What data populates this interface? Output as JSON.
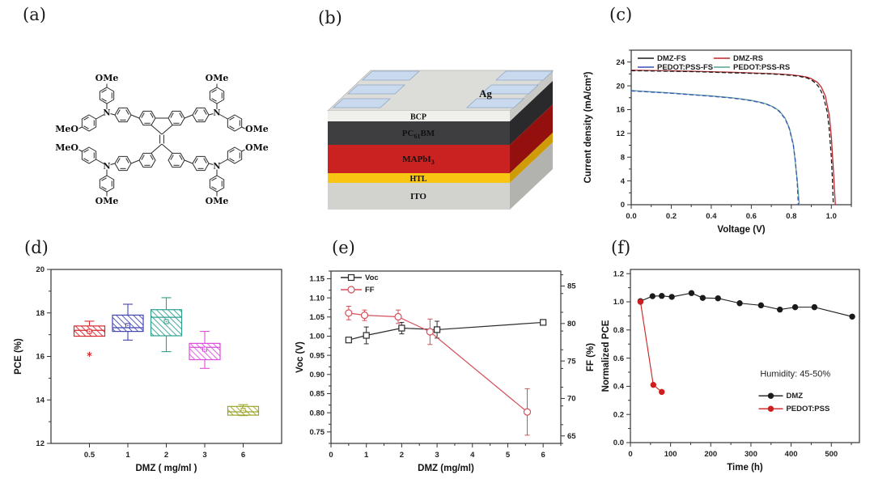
{
  "panels": {
    "a": {
      "tag": "(a)",
      "ome": "OMe",
      "meo": "MeO",
      "n": "N"
    },
    "b": {
      "tag": "(b)",
      "electrode": "Ag",
      "layers": [
        {
          "name": "BCP"
        },
        {
          "pre": "PC",
          "sub": "61",
          "post": "BM"
        },
        {
          "pre": "MAPbI",
          "sub": "3",
          "post": ""
        },
        {
          "name": "HTL"
        },
        {
          "name": "ITO"
        }
      ]
    },
    "c": {
      "tag": "(c)"
    },
    "d": {
      "tag": "(d)"
    },
    "e": {
      "tag": "(e)"
    },
    "f": {
      "tag": "(f)"
    }
  },
  "chart_data": [
    {
      "id": "jv-curves",
      "type": "line",
      "xlabel": "Voltage (V)",
      "ylabel": "Current density (mA/cm²)",
      "xlim": [
        0,
        1.1
      ],
      "ylim": [
        0,
        26
      ],
      "xticks": [
        0,
        0.2,
        0.4,
        0.6,
        0.8,
        1.0
      ],
      "xtick_labels": [
        "0.0",
        "0.2",
        "0.4",
        "0.6",
        "0.8",
        "1.0"
      ],
      "xminor": 0.1,
      "yticks": [
        0,
        4,
        8,
        12,
        16,
        20,
        24
      ],
      "ytick_labels": [
        "0",
        "4",
        "8",
        "12",
        "16",
        "20",
        "24"
      ],
      "yminor": 2,
      "series": [
        {
          "name": "DMZ-FS",
          "color": "#1a1a1a",
          "dash": "5,3",
          "points": [
            [
              0,
              22.55
            ],
            [
              0.1,
              22.5
            ],
            [
              0.2,
              22.45
            ],
            [
              0.3,
              22.4
            ],
            [
              0.4,
              22.3
            ],
            [
              0.5,
              22.2
            ],
            [
              0.6,
              22.1
            ],
            [
              0.7,
              22.0
            ],
            [
              0.75,
              21.9
            ],
            [
              0.8,
              21.75
            ],
            [
              0.84,
              21.6
            ],
            [
              0.88,
              21.3
            ],
            [
              0.9,
              21.0
            ],
            [
              0.92,
              20.5
            ],
            [
              0.94,
              19.7
            ],
            [
              0.96,
              18.3
            ],
            [
              0.98,
              15.5
            ],
            [
              0.99,
              12.5
            ],
            [
              1.0,
              8.0
            ],
            [
              1.005,
              4.5
            ],
            [
              1.01,
              0
            ]
          ]
        },
        {
          "name": "DMZ-RS",
          "color": "#c0272d",
          "points": [
            [
              0,
              22.62
            ],
            [
              0.1,
              22.57
            ],
            [
              0.2,
              22.52
            ],
            [
              0.3,
              22.45
            ],
            [
              0.4,
              22.37
            ],
            [
              0.5,
              22.28
            ],
            [
              0.6,
              22.17
            ],
            [
              0.7,
              22.05
            ],
            [
              0.75,
              21.97
            ],
            [
              0.8,
              21.85
            ],
            [
              0.84,
              21.7
            ],
            [
              0.88,
              21.45
            ],
            [
              0.9,
              21.2
            ],
            [
              0.93,
              20.6
            ],
            [
              0.95,
              19.8
            ],
            [
              0.97,
              18.3
            ],
            [
              0.99,
              15.0
            ],
            [
              1.0,
              11.5
            ],
            [
              1.01,
              6.0
            ],
            [
              1.02,
              0
            ]
          ]
        },
        {
          "name": "PEDOT:PSS-FS",
          "color": "#3c50b4",
          "dash": "5,3",
          "points": [
            [
              0,
              19.15
            ],
            [
              0.1,
              18.95
            ],
            [
              0.2,
              18.75
            ],
            [
              0.3,
              18.5
            ],
            [
              0.4,
              18.25
            ],
            [
              0.5,
              17.95
            ],
            [
              0.55,
              17.75
            ],
            [
              0.6,
              17.5
            ],
            [
              0.65,
              17.15
            ],
            [
              0.68,
              16.85
            ],
            [
              0.71,
              16.4
            ],
            [
              0.74,
              15.7
            ],
            [
              0.77,
              14.4
            ],
            [
              0.79,
              12.8
            ],
            [
              0.81,
              10.0
            ],
            [
              0.82,
              7.5
            ],
            [
              0.83,
              3.5
            ],
            [
              0.835,
              0
            ]
          ]
        },
        {
          "name": "PEDOT:PSS-RS",
          "color": "#55a394",
          "points": [
            [
              0,
              19.2
            ],
            [
              0.1,
              19.0
            ],
            [
              0.2,
              18.8
            ],
            [
              0.3,
              18.55
            ],
            [
              0.4,
              18.3
            ],
            [
              0.5,
              18.0
            ],
            [
              0.55,
              17.8
            ],
            [
              0.6,
              17.55
            ],
            [
              0.65,
              17.2
            ],
            [
              0.68,
              16.9
            ],
            [
              0.71,
              16.45
            ],
            [
              0.74,
              15.8
            ],
            [
              0.77,
              14.5
            ],
            [
              0.79,
              12.9
            ],
            [
              0.81,
              10.2
            ],
            [
              0.83,
              4.0
            ],
            [
              0.84,
              0
            ]
          ]
        }
      ]
    },
    {
      "id": "pce-boxplot",
      "type": "box",
      "xlabel": "DMZ ( mg/ml )",
      "ylabel": "PCE (%)",
      "xlim": [
        0,
        6
      ],
      "ylim": [
        12,
        20
      ],
      "positions": [
        1,
        2,
        3,
        4,
        5
      ],
      "categories": [
        "0.5",
        "1",
        "2",
        "3",
        "6"
      ],
      "yticks": [
        12,
        14,
        16,
        18,
        20
      ],
      "ytick_labels": [
        "12",
        "14",
        "16",
        "18",
        "20"
      ],
      "yminor": 1,
      "boxes": [
        {
          "label": "0.5",
          "color": "#d7282f",
          "q1": 16.93,
          "median": 17.2,
          "q3": 17.4,
          "low": 16.93,
          "high": 17.62,
          "mean": 17.15,
          "outliers": [
            16.1
          ]
        },
        {
          "label": "1",
          "color": "#4447b2",
          "q1": 17.15,
          "median": 17.32,
          "q3": 17.9,
          "low": 16.75,
          "high": 18.4,
          "mean": 17.42,
          "outliers": []
        },
        {
          "label": "2",
          "color": "#2fa08e",
          "q1": 16.95,
          "median": 17.8,
          "q3": 18.15,
          "low": 16.22,
          "high": 18.7,
          "mean": 17.6,
          "outliers": []
        },
        {
          "label": "3",
          "color": "#dd4ddd",
          "q1": 15.85,
          "median": 16.42,
          "q3": 16.6,
          "low": 15.45,
          "high": 17.15,
          "mean": 16.33,
          "outliers": []
        },
        {
          "label": "6",
          "color": "#9ba427",
          "q1": 13.3,
          "median": 13.45,
          "q3": 13.7,
          "low": 13.28,
          "high": 13.78,
          "mean": 13.52,
          "outliers": []
        }
      ]
    },
    {
      "id": "voc-ff",
      "type": "errorline",
      "xlabel": "DMZ (mg/ml)",
      "ylabel": "Voc (V)",
      "y2label": "FF (%)",
      "xlim": [
        0,
        6.5
      ],
      "ylim": [
        0.72,
        1.17
      ],
      "y2lim": [
        64,
        87
      ],
      "xticks": [
        0,
        1,
        2,
        3,
        4,
        5,
        6
      ],
      "xtick_labels": [
        "0",
        "1",
        "2",
        "3",
        "4",
        "5",
        "6"
      ],
      "xminor": 0.5,
      "yticks": [
        0.75,
        0.8,
        0.85,
        0.9,
        0.95,
        1.0,
        1.05,
        1.1,
        1.15
      ],
      "ytick_labels": [
        "0.75",
        "0.80",
        "0.85",
        "0.90",
        "0.95",
        "1.00",
        "1.05",
        "1.10",
        "1.15"
      ],
      "yminor": 0.025,
      "y2ticks": [
        65,
        70,
        75,
        80,
        85
      ],
      "y2tick_labels": [
        "65",
        "70",
        "75",
        "80",
        "85"
      ],
      "y2minor": 2.5,
      "series": [
        {
          "name": "Voc",
          "axis": "y",
          "color": "#2a2a2a",
          "marker": "square-open",
          "x": [
            0.5,
            1,
            2,
            3,
            6
          ],
          "y": [
            0.99,
            1.002,
            1.021,
            1.017,
            1.036
          ],
          "yerr": [
            0.006,
            0.022,
            0.015,
            0.022,
            0.004
          ]
        },
        {
          "name": "FF",
          "axis": "y2",
          "color": "#d5505a",
          "marker": "circle-open",
          "x": [
            0.5,
            0.95,
            1.9,
            2.8,
            5.55
          ],
          "y": [
            81.4,
            81.1,
            80.9,
            78.9,
            68.2
          ],
          "yerr": [
            0.9,
            0.7,
            0.9,
            1.7,
            3.1
          ]
        }
      ]
    },
    {
      "id": "stability",
      "type": "markerline",
      "xlabel": "Time (h)",
      "ylabel": "Normalized PCE",
      "xlim": [
        0,
        570
      ],
      "ylim": [
        0,
        1.23
      ],
      "xticks": [
        0,
        100,
        200,
        300,
        400,
        500
      ],
      "xtick_labels": [
        "0",
        "100",
        "200",
        "300",
        "400",
        "500"
      ],
      "xminor": 50,
      "yticks": [
        0,
        0.2,
        0.4,
        0.6,
        0.8,
        1.0,
        1.2
      ],
      "ytick_labels": [
        "0.0",
        "0.2",
        "0.4",
        "0.6",
        "0.8",
        "1.0",
        "1.2"
      ],
      "yminor": 0.1,
      "annotation": "Humidity: 45-50%",
      "series": [
        {
          "name": "DMZ",
          "color": "#1a1a1a",
          "points": [
            [
              25,
              1.005
            ],
            [
              55,
              1.04
            ],
            [
              78,
              1.042
            ],
            [
              103,
              1.035
            ],
            [
              152,
              1.062
            ],
            [
              180,
              1.028
            ],
            [
              218,
              1.025
            ],
            [
              272,
              0.99
            ],
            [
              325,
              0.975
            ],
            [
              372,
              0.945
            ],
            [
              410,
              0.962
            ],
            [
              458,
              0.962
            ],
            [
              552,
              0.895
            ]
          ]
        },
        {
          "name": "PEDOT:PSS",
          "color": "#cc1f1f",
          "points": [
            [
              25,
              1.0
            ],
            [
              57,
              0.41
            ],
            [
              78,
              0.36
            ]
          ]
        }
      ]
    }
  ]
}
